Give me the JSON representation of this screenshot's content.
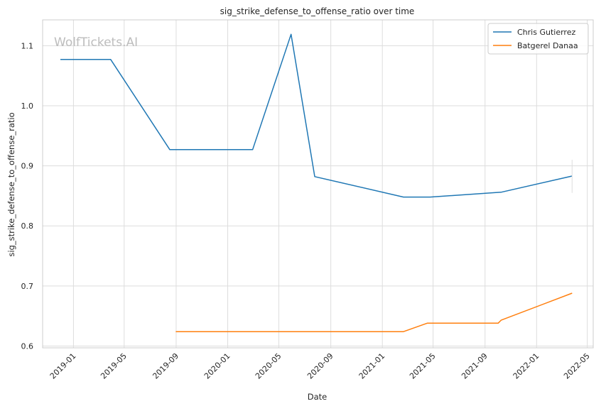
{
  "chart_data": {
    "type": "line",
    "title": "sig_strike_defense_to_offense_ratio over time",
    "xlabel": "Date",
    "ylabel": "sig_strike_defense_to_offense_ratio",
    "watermark": "WolfTickets.AI",
    "x_axis": {
      "ticks": [
        "2019-01-01",
        "2019-05-01",
        "2019-09-01",
        "2020-01-01",
        "2020-05-01",
        "2020-09-01",
        "2021-01-01",
        "2021-05-01",
        "2021-09-01",
        "2022-01-01",
        "2022-05-01"
      ],
      "tick_labels": [
        "2019-01",
        "2019-05",
        "2019-09",
        "2020-01",
        "2020-05",
        "2020-09",
        "2021-01",
        "2021-05",
        "2021-09",
        "2022-01",
        "2022-05"
      ],
      "range": [
        "2018-10-20",
        "2022-05-15"
      ]
    },
    "y_axis": {
      "ticks": [
        0.6,
        0.7,
        0.8,
        0.9,
        1.0,
        1.1
      ],
      "tick_labels": [
        "0.6",
        "0.7",
        "0.8",
        "0.9",
        "1.0",
        "1.1"
      ],
      "ylim": [
        0.597,
        1.143
      ]
    },
    "grid": true,
    "legend_position": "top-right",
    "series": [
      {
        "name": "Chris Gutierrez",
        "color": "#1f77b4",
        "x": [
          "2018-12-01",
          "2019-03-30",
          "2019-08-17",
          "2020-02-29",
          "2020-05-30",
          "2020-07-25",
          "2021-02-20",
          "2021-04-24",
          "2021-10-09",
          "2022-03-26"
        ],
        "y": [
          1.077,
          1.077,
          0.927,
          0.927,
          1.119,
          0.882,
          0.848,
          0.848,
          0.856,
          0.883
        ]
      },
      {
        "name": "Batgerel Danaa",
        "color": "#ff7f0e",
        "x": [
          "2019-08-31",
          "2021-02-20",
          "2021-04-17",
          "2021-10-02",
          "2021-10-09",
          "2022-03-26"
        ],
        "y": [
          0.624,
          0.624,
          0.638,
          0.638,
          0.643,
          0.688
        ]
      }
    ]
  }
}
